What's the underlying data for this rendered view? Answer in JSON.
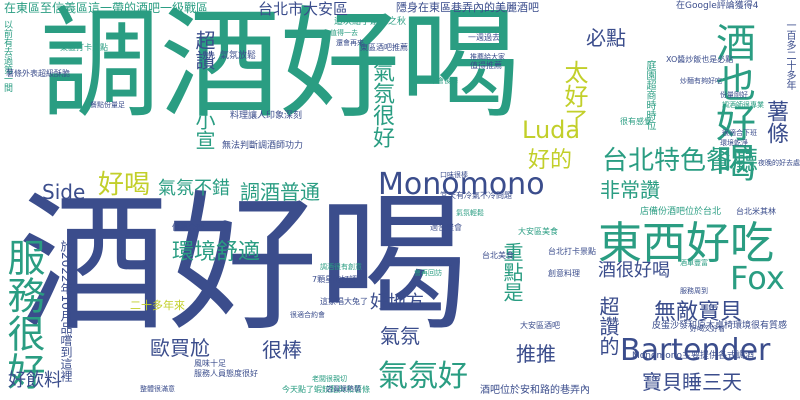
{
  "words": [
    {
      "id": "w-main-1",
      "text": "調酒好喝",
      "color": "teal"
    },
    {
      "id": "w-main-2",
      "text": "酒好喝",
      "color": "navy"
    },
    {
      "id": "w-1",
      "text": "東西好吃",
      "color": "teal"
    },
    {
      "id": "w-2",
      "text": "Monomono",
      "color": "navy"
    },
    {
      "id": "w-3",
      "text": "Bartender",
      "color": "navy"
    },
    {
      "id": "w-4",
      "text": "Fox",
      "color": "teal"
    },
    {
      "id": "w-5",
      "text": "酒也好喝",
      "color": "teal"
    },
    {
      "id": "w-6",
      "text": "服務很好",
      "color": "teal"
    },
    {
      "id": "w-7",
      "text": "氣氛好",
      "color": "teal"
    },
    {
      "id": "w-8",
      "text": "環境舒適",
      "color": "teal"
    },
    {
      "id": "w-9",
      "text": "調酒普通",
      "color": "teal"
    },
    {
      "id": "w-10",
      "text": "氣氛不錯",
      "color": "teal"
    },
    {
      "id": "w-11",
      "text": "台北特色餐廳",
      "color": "teal"
    },
    {
      "id": "w-12",
      "text": "非常讚",
      "color": "teal"
    },
    {
      "id": "w-13",
      "text": "無敵寶貝",
      "color": "navy"
    },
    {
      "id": "w-14",
      "text": "寶貝睡三天",
      "color": "navy"
    },
    {
      "id": "w-15",
      "text": "酒很好喝",
      "color": "navy"
    },
    {
      "id": "w-16",
      "text": "好喝",
      "color": "yellow"
    },
    {
      "id": "w-17",
      "text": "好的",
      "color": "yellow"
    },
    {
      "id": "w-18",
      "text": "Luda",
      "color": "yellow"
    },
    {
      "id": "w-19",
      "text": "Side",
      "color": "navy"
    },
    {
      "id": "w-20",
      "text": "氣氛很好",
      "color": "teal"
    },
    {
      "id": "w-21",
      "text": "太好了",
      "color": "yellow"
    },
    {
      "id": "w-22",
      "text": "必點",
      "color": "navy"
    },
    {
      "id": "w-23",
      "text": "薯條",
      "color": "navy"
    },
    {
      "id": "w-24",
      "text": "超讚的",
      "color": "navy"
    },
    {
      "id": "w-25",
      "text": "重點是",
      "color": "teal"
    },
    {
      "id": "w-26",
      "text": "好地方",
      "color": "navy"
    },
    {
      "id": "w-27",
      "text": "氣氛",
      "color": "navy"
    },
    {
      "id": "w-28",
      "text": "推推",
      "color": "navy"
    },
    {
      "id": "w-29",
      "text": "很棒",
      "color": "navy"
    },
    {
      "id": "w-30",
      "text": "歐買尬",
      "color": "navy"
    },
    {
      "id": "w-31",
      "text": "好飲料",
      "color": "navy"
    },
    {
      "id": "w-32",
      "text": "台北市大安區",
      "color": "navy"
    },
    {
      "id": "w-33",
      "text": "超讚",
      "color": "navy"
    },
    {
      "id": "w-34",
      "text": "小宣",
      "color": "teal"
    },
    {
      "id": "w-35",
      "text": "庭園超商時時位",
      "color": "teal"
    },
    {
      "id": "w-36",
      "text": "在東區至信義區這一帶的酒吧一級戰區",
      "color": "teal"
    },
    {
      "id": "w-37",
      "text": "隱身在東區巷弄內的美麗酒吧",
      "color": "navy"
    },
    {
      "id": "w-38",
      "text": "在Google評論獲得4",
      "color": "navy"
    },
    {
      "id": "w-39",
      "text": "東區打卡景點",
      "color": "teal"
    },
    {
      "id": "w-40",
      "text": "東區酒吧推薦",
      "color": "navy"
    },
    {
      "id": "w-41",
      "text": "一百多二十多年",
      "color": "navy"
    },
    {
      "id": "w-42",
      "text": "店備份酒吧位於台北",
      "color": "teal"
    },
    {
      "id": "w-43",
      "text": "酒吧位於安和路的巷弄內",
      "color": "navy"
    },
    {
      "id": "w-44",
      "text": "Monomono主要提供各式調酒",
      "color": "navy"
    },
    {
      "id": "w-45",
      "text": "皮蛋沙發和原木桌椅環境很有質感",
      "color": "navy"
    },
    {
      "id": "w-46",
      "text": "台北米其林",
      "color": "navy"
    },
    {
      "id": "w-47",
      "text": "以前有去過第一間",
      "color": "teal"
    },
    {
      "id": "w-48",
      "text": "於2022年10月品嚐到這裡",
      "color": "navy"
    },
    {
      "id": "w-49",
      "text": "大安區美食",
      "color": "teal"
    },
    {
      "id": "w-50",
      "text": "台北美食",
      "color": "navy"
    },
    {
      "id": "w-51",
      "text": "風味十足",
      "color": "navy"
    },
    {
      "id": "w-52",
      "text": "這家唱大兔了",
      "color": "navy"
    },
    {
      "id": "w-53",
      "text": "7顆星的好評",
      "color": "navy"
    },
    {
      "id": "w-54",
      "text": "今天點了蝦餃麵與和薯條",
      "color": "teal"
    },
    {
      "id": "w-55",
      "text": "服務人員態度很好",
      "color": "navy"
    },
    {
      "id": "w-56",
      "text": "氣氛放鬆",
      "color": "navy"
    },
    {
      "id": "w-57",
      "text": "料理讓人印象深刻",
      "color": "navy"
    },
    {
      "id": "w-58",
      "text": "無法判斷調酒師功力",
      "color": "navy"
    },
    {
      "id": "w-59",
      "text": "這次點了蕭瑟之秋",
      "color": "teal"
    },
    {
      "id": "w-60",
      "text": "當天有冷氣不冷問題",
      "color": "navy"
    },
    {
      "id": "w-61",
      "text": "薯條外表超級酥脆",
      "color": "navy"
    },
    {
      "id": "w-62",
      "text": "二十多年來",
      "color": "yellow"
    },
    {
      "id": "w-63",
      "text": "很有感覺",
      "color": "teal"
    },
    {
      "id": "w-64",
      "text": "創意料理",
      "color": "navy"
    },
    {
      "id": "w-65",
      "text": "值得推薦",
      "color": "navy"
    },
    {
      "id": "w-66",
      "text": "XO醬炒飯也是必點",
      "color": "navy"
    },
    {
      "id": "w-67",
      "text": "炒麵有夠好吃",
      "color": "navy"
    },
    {
      "id": "w-68",
      "text": "不會後悔",
      "color": "teal"
    },
    {
      "id": "w-69",
      "text": "一週過去",
      "color": "navy"
    },
    {
      "id": "w-70",
      "text": "環境很好",
      "color": "teal"
    },
    {
      "id": "w-71",
      "text": "適合聚會",
      "color": "navy"
    },
    {
      "id": "w-72",
      "text": "調酒很有創意",
      "color": "teal"
    },
    {
      "id": "w-73",
      "text": "餐點份量足",
      "color": "navy"
    },
    {
      "id": "w-74",
      "text": "價格合理",
      "color": "navy"
    },
    {
      "id": "w-75",
      "text": "大安區酒吧",
      "color": "navy"
    },
    {
      "id": "w-76",
      "text": "台北打卡景點",
      "color": "navy"
    },
    {
      "id": "w-77",
      "text": "會再回訪",
      "color": "teal"
    },
    {
      "id": "w-78",
      "text": "很適合約會",
      "color": "navy"
    },
    {
      "id": "w-79",
      "text": "老闆很親切",
      "color": "teal"
    },
    {
      "id": "w-80",
      "text": "店員很熱情",
      "color": "navy"
    },
    {
      "id": "w-81",
      "text": "整體很滿意",
      "color": "navy"
    },
    {
      "id": "w-82",
      "text": "值得一去",
      "color": "teal"
    },
    {
      "id": "w-83",
      "text": "還會再來",
      "color": "navy"
    },
    {
      "id": "w-84",
      "text": "推薦給大家",
      "color": "navy"
    },
    {
      "id": "w-85",
      "text": "口味很棒",
      "color": "navy"
    },
    {
      "id": "w-86",
      "text": "氣氛輕鬆",
      "color": "teal"
    },
    {
      "id": "w-87",
      "text": "很好聊天",
      "color": "navy"
    },
    {
      "id": "w-88",
      "text": "份量剛好",
      "color": "navy"
    },
    {
      "id": "w-89",
      "text": "調酒師很專業",
      "color": "teal"
    },
    {
      "id": "w-90",
      "text": "很適合下班",
      "color": "navy"
    },
    {
      "id": "w-91",
      "text": "環境乾淨",
      "color": "navy"
    },
    {
      "id": "w-92",
      "text": "酒單豐富",
      "color": "teal"
    },
    {
      "id": "w-93",
      "text": "服務周到",
      "color": "navy"
    },
    {
      "id": "w-94",
      "text": "好喝又好看",
      "color": "navy"
    },
    {
      "id": "w-95",
      "text": "夜晚的好去處",
      "color": "navy"
    },
    {
      "id": "w-96",
      "text": "很有特色",
      "color": "teal"
    }
  ],
  "colors": {
    "teal": "#2a9d82",
    "navy": "#3b4d8c",
    "yellow": "#c2cf2a",
    "green": "#69bd50",
    "background": "#ffffff"
  }
}
